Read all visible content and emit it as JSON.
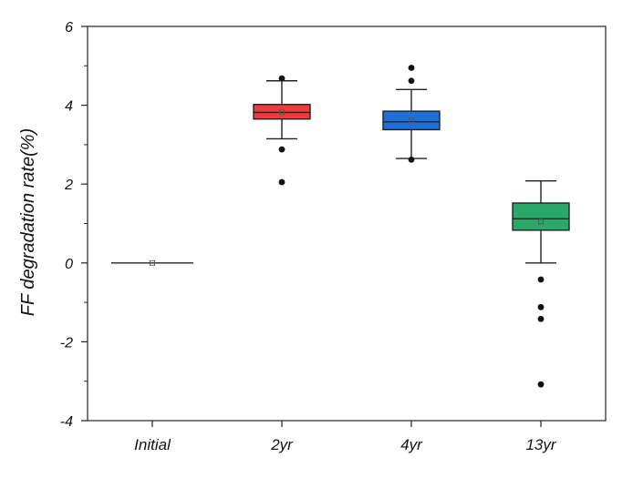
{
  "chart_data": {
    "type": "box",
    "title": "",
    "xlabel": "",
    "ylabel": "FF degradation rate(%)",
    "ylim": [
      -4,
      6
    ],
    "yticks": [
      -4,
      -2,
      0,
      2,
      4,
      6
    ],
    "y_minor_step": 1,
    "grid": false,
    "legend": "none",
    "categories": [
      "Initial",
      "2yr",
      "4yr",
      "13yr"
    ],
    "boxes": [
      {
        "category": "Initial",
        "color": "#888888",
        "whisker_low": 0.0,
        "q1": 0.0,
        "median": 0.0,
        "q3": 0.0,
        "whisker_high": 0.0,
        "mean": 0.0,
        "outliers": []
      },
      {
        "category": "2yr",
        "color": "#ef3b3b",
        "whisker_low": 3.15,
        "q1": 3.65,
        "median": 3.82,
        "q3": 4.02,
        "whisker_high": 4.62,
        "mean": 3.82,
        "outliers": [
          4.68,
          2.88,
          2.05
        ]
      },
      {
        "category": "4yr",
        "color": "#1f6fd8",
        "whisker_low": 2.65,
        "q1": 3.38,
        "median": 3.58,
        "q3": 3.85,
        "whisker_high": 4.4,
        "mean": 3.62,
        "outliers": [
          4.95,
          4.62,
          2.62
        ]
      },
      {
        "category": "13yr",
        "color": "#2aa86a",
        "whisker_low": 0.0,
        "q1": 0.83,
        "median": 1.12,
        "q3": 1.52,
        "whisker_high": 2.08,
        "mean": 1.05,
        "outliers": [
          -0.42,
          -1.12,
          -1.42,
          -3.08
        ]
      }
    ]
  }
}
